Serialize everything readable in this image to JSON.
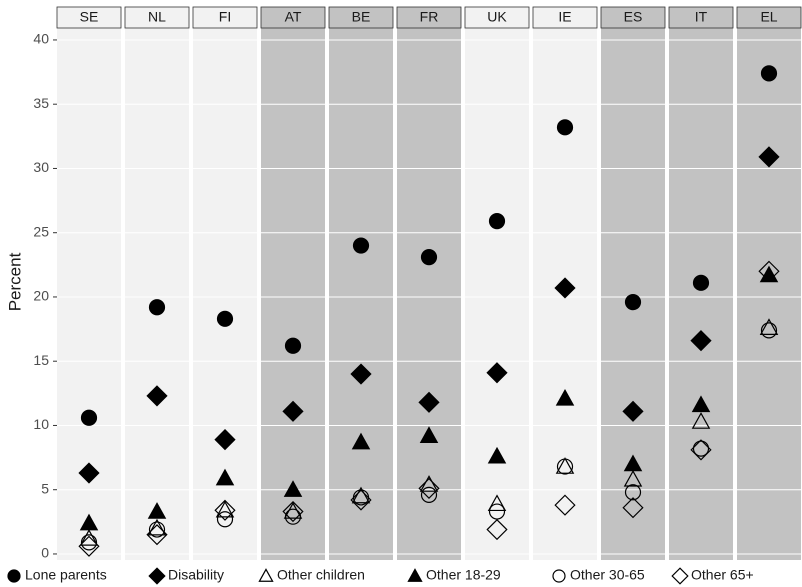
{
  "chart_data": {
    "type": "scatter",
    "y_label": "Percent",
    "categories": [
      "SE",
      "NL",
      "FI",
      "AT",
      "BE",
      "FR",
      "UK",
      "IE",
      "ES",
      "IT",
      "EL"
    ],
    "panel_colors": [
      "#f2f2f2",
      "#f2f2f2",
      "#f2f2f2",
      "#c2c2c2",
      "#c2c2c2",
      "#c2c2c2",
      "#f2f2f2",
      "#f2f2f2",
      "#c2c2c2",
      "#c2c2c2",
      "#c2c2c2"
    ],
    "ylim": [
      -0.47,
      40.93
    ],
    "yticks": [
      0,
      5,
      10,
      15,
      20,
      25,
      30,
      35,
      40
    ],
    "grid": true,
    "legend": "bottom",
    "series": [
      {
        "name": "Lone parents",
        "marker": "circle",
        "filled": true,
        "color": "#000000",
        "values": [
          10.6,
          19.2,
          18.3,
          16.2,
          24.0,
          23.1,
          25.9,
          33.2,
          19.6,
          21.1,
          37.4
        ]
      },
      {
        "name": "Disability",
        "marker": "diamond",
        "filled": true,
        "color": "#000000",
        "values": [
          6.3,
          12.3,
          8.9,
          11.1,
          14.0,
          11.8,
          14.1,
          20.7,
          11.1,
          16.6,
          30.9
        ]
      },
      {
        "name": "Other children",
        "marker": "triangle",
        "filled": false,
        "color": "#000000",
        "values": [
          1.2,
          2.0,
          3.4,
          3.3,
          4.5,
          5.4,
          3.9,
          6.8,
          5.8,
          10.3,
          17.6
        ]
      },
      {
        "name": "Other 18-29",
        "marker": "triangle",
        "filled": true,
        "color": "#000000",
        "values": [
          2.4,
          3.3,
          5.9,
          5.0,
          8.7,
          9.2,
          7.6,
          12.1,
          7.0,
          11.6,
          21.7
        ]
      },
      {
        "name": "Other 30-65",
        "marker": "circle",
        "filled": false,
        "color": "#000000",
        "values": [
          0.9,
          1.9,
          2.7,
          2.9,
          4.4,
          4.6,
          3.3,
          6.8,
          4.8,
          8.2,
          17.4
        ]
      },
      {
        "name": "Other 65+",
        "marker": "diamond",
        "filled": false,
        "color": "#000000",
        "values": [
          0.6,
          1.5,
          3.4,
          3.3,
          4.2,
          5.1,
          1.9,
          3.8,
          3.6,
          8.1,
          22.0
        ]
      }
    ]
  }
}
